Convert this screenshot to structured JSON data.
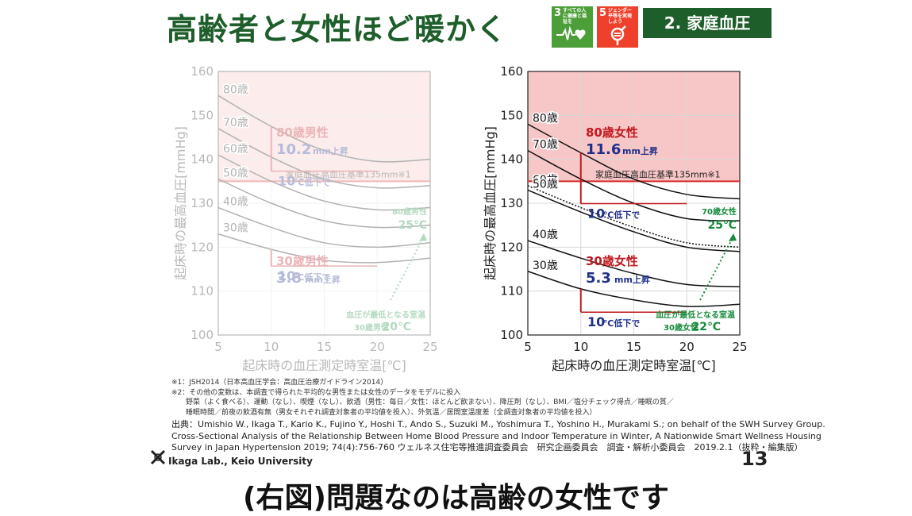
{
  "header": {
    "title": "高齢者と女性ほど暖かく",
    "tag": "2. 家庭血圧",
    "sdg3": {
      "num": "3",
      "text": "すべての人に健康と福祉を",
      "color": "#4c9f38",
      "icon": "heartbeat-icon"
    },
    "sdg5": {
      "num": "5",
      "text": "ジェンダー平等を実現しよう",
      "color": "#ef402b",
      "icon": "gender-equality-icon"
    }
  },
  "chart_data": [
    {
      "type": "line",
      "title": "",
      "faded": true,
      "xlabel": "起床時の血圧測定時室温[℃]",
      "ylabel": "起床時の最高血圧[mmHg]",
      "xlim": [
        5,
        25
      ],
      "ylim": [
        100,
        160
      ],
      "xticks": [
        "5",
        "10",
        "15",
        "20",
        "25"
      ],
      "yticks": [
        "100",
        "110",
        "120",
        "130",
        "140",
        "150",
        "160"
      ],
      "threshold": {
        "value": 135,
        "label": "家庭血圧高血圧基準135mm※1"
      },
      "series": [
        {
          "name": "80歳",
          "x": [
            5,
            10,
            15,
            20,
            25
          ],
          "y": [
            154.5,
            147.5,
            142,
            139.5,
            140
          ]
        },
        {
          "name": "70歳",
          "x": [
            5,
            10,
            15,
            20,
            25
          ],
          "y": [
            147,
            140.5,
            135.5,
            133.5,
            134
          ]
        },
        {
          "name": "60歳",
          "x": [
            5,
            10,
            15,
            20,
            25
          ],
          "y": [
            141,
            135,
            130.5,
            128.5,
            129
          ]
        },
        {
          "name": "50歳",
          "x": [
            5,
            10,
            15,
            20,
            25
          ],
          "y": [
            135.5,
            130,
            126,
            124.5,
            125
          ]
        },
        {
          "name": "40歳",
          "x": [
            5,
            10,
            15,
            20,
            25
          ],
          "y": [
            129,
            124.5,
            121,
            120,
            121
          ]
        },
        {
          "name": "30歳",
          "x": [
            5,
            10,
            15,
            20,
            25
          ],
          "y": [
            123,
            119.5,
            117,
            116.5,
            117.5
          ]
        }
      ],
      "annotations": {
        "top_group": "80歳男性",
        "top_value": "10.2",
        "top_unit": "mm上昇",
        "top_drop": "10",
        "top_drop_unit": "℃低下で",
        "top_optimum_group": "80歳男性",
        "top_optimum_temp": "25℃",
        "bottom_group": "30歳男性",
        "bottom_value": "3.8",
        "bottom_unit": "mm上昇",
        "bottom_drop": "10",
        "bottom_drop_unit": "℃低下で",
        "optimum_label": "血圧が最低となる室温",
        "bottom_optimum_group": "30歳男性",
        "bottom_optimum_temp": "20℃"
      }
    },
    {
      "type": "line",
      "title": "",
      "faded": false,
      "xlabel": "起床時の血圧測定時室温[℃]",
      "ylabel": "起床時の最高血圧[mmHg]",
      "xlim": [
        5,
        25
      ],
      "ylim": [
        100,
        160
      ],
      "xticks": [
        "5",
        "10",
        "15",
        "20",
        "25"
      ],
      "yticks": [
        "100",
        "110",
        "120",
        "130",
        "140",
        "150",
        "160"
      ],
      "threshold": {
        "value": 135,
        "label": "家庭血圧高血圧基準135mm※1"
      },
      "series": [
        {
          "name": "80歳",
          "x": [
            5,
            10,
            15,
            20,
            25
          ],
          "y": [
            148,
            141.5,
            135.5,
            132,
            131
          ]
        },
        {
          "name": "70歳",
          "x": [
            5,
            10,
            15,
            20,
            25
          ],
          "y": [
            142,
            135.5,
            130,
            126.5,
            126
          ]
        },
        {
          "name": "60歳",
          "x": [
            5,
            10,
            15,
            20,
            25
          ],
          "y": [
            134,
            129,
            124.5,
            121,
            120
          ],
          "dashed": true
        },
        {
          "name": "50歳",
          "x": [
            5,
            10,
            15,
            20,
            25
          ],
          "y": [
            133,
            128,
            123.5,
            120,
            119
          ]
        },
        {
          "name": "40歳",
          "x": [
            5,
            10,
            15,
            20,
            25
          ],
          "y": [
            121.5,
            117.5,
            114,
            111.5,
            111
          ]
        },
        {
          "name": "30歳",
          "x": [
            5,
            10,
            15,
            20,
            25
          ],
          "y": [
            114.5,
            110.5,
            108,
            106.5,
            107
          ]
        }
      ],
      "annotations": {
        "top_group": "80歳女性",
        "top_value": "11.6",
        "top_unit": "mm上昇",
        "top_drop": "10",
        "top_drop_unit": "℃低下で",
        "top_optimum_group": "70歳女性",
        "top_optimum_temp": "25℃",
        "bottom_group": "30歳女性",
        "bottom_value": "5.3",
        "bottom_unit": "mm上昇",
        "bottom_drop": "10",
        "bottom_drop_unit": "℃低下で",
        "optimum_label": "血圧が最低となる室温",
        "bottom_optimum_group": "30歳女性",
        "bottom_optimum_temp": "22℃"
      }
    }
  ],
  "notes": [
    "※1：JSH2014（日本高血圧学会：高血圧治療ガイドライン2014）",
    "※2：その他の変数は、本調査で得られた平均的な男性または女性のデータをモデルに投入",
    "　　野菜（よく食べる）、運動（なし）、喫煙（なし）、飲酒（男性：毎日／女性：ほとんど飲まない）、降圧剤（なし）、BMI／塩分チェック得点／睡眠の質／",
    "　　睡眠時間／前夜の飲酒有無（男女それぞれ調査対象者の平均値を投入）、外気温／居間室温度差（全調査対象者の平均値を投入）"
  ],
  "reference": [
    "出典：Umishio W., Ikaga T., Kario K., Fujino Y., Hoshi T., Ando S., Suzuki M., Yoshimura T., Yoshino H., Murakami S.; on behalf of the SWH Survey Group.",
    "Cross-Sectional Analysis of the Relationship Between Home Blood Pressure and Indoor Temperature in Winter, A Nationwide Smart Wellness Housing",
    "Survey in Japan Hypertension 2019; 74(4):756-760 ウェルネス住宅等推進調査委員会　研究企画委員会　調査・解析小委員会　2019.2.1（抜粋・編集版）"
  ],
  "footer": {
    "lab": "Ikaga Lab., Keio University",
    "page": "13",
    "caption": "(右図)問題なのは高齢の女性です"
  },
  "colors": {
    "title_green": "#1d5e2a",
    "zone_pink": "#f7c6c6",
    "threshold_red": "#d42a2a",
    "annot_red": "#c0181e",
    "annot_blue": "#1f2f8a",
    "annot_green": "#178a3c"
  }
}
